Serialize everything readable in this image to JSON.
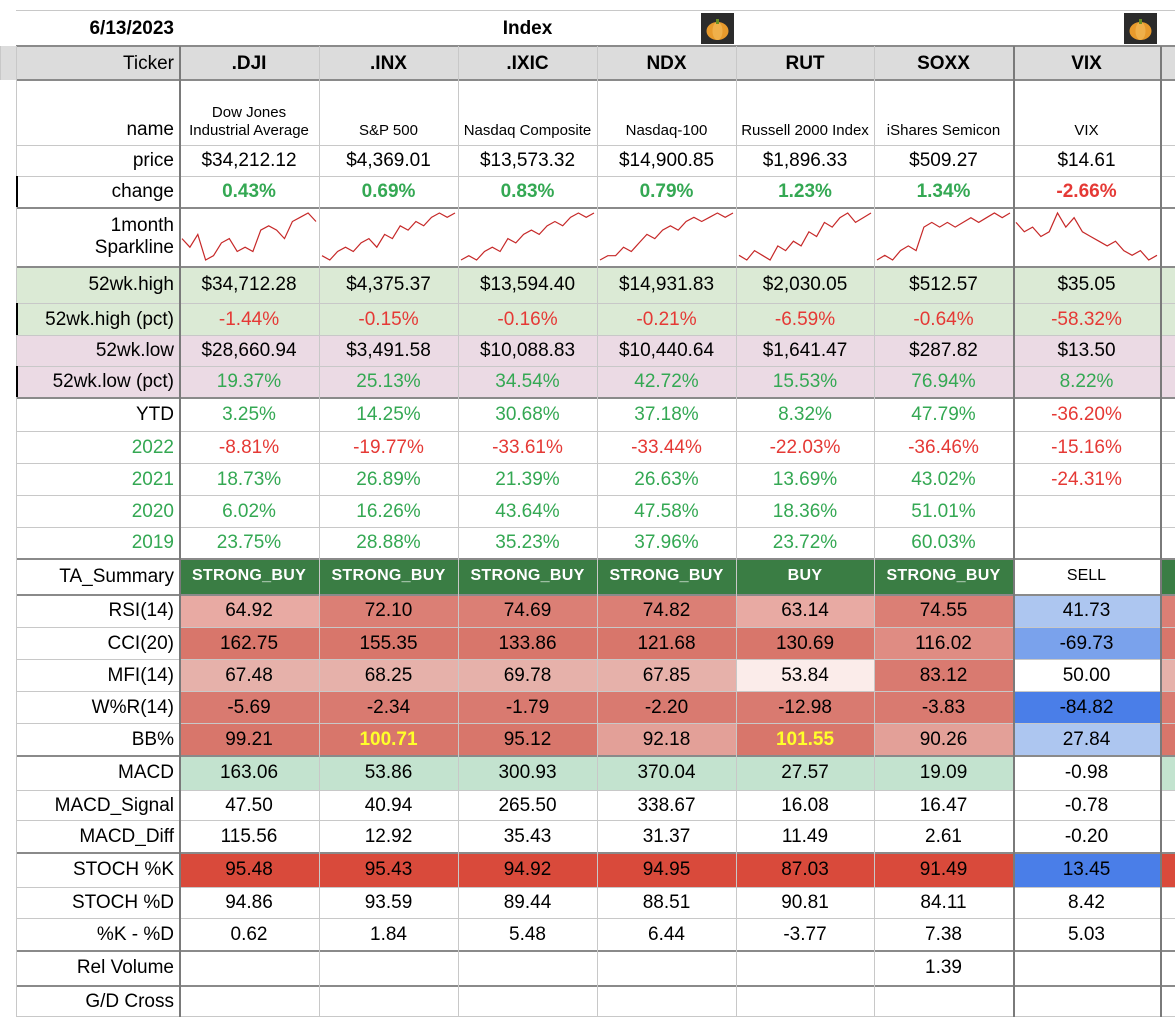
{
  "header": {
    "date": "6/13/2023",
    "section": "Index"
  },
  "row_labels": {
    "ticker": "Ticker",
    "name": "name",
    "price": "price",
    "change": "change",
    "sparkline": [
      "1month",
      "Sparkline"
    ],
    "high52": "52wk.high",
    "high52pct": "52wk.high (pct)",
    "low52": "52wk.low",
    "low52pct": "52wk.low (pct)",
    "ytd": "YTD",
    "y2022": "2022",
    "y2021": "2021",
    "y2020": "2020",
    "y2019": "2019",
    "ta": "TA_Summary",
    "rsi": "RSI(14)",
    "cci": "CCI(20)",
    "mfi": "MFI(14)",
    "wr": "W%R(14)",
    "bb": "BB%",
    "macd": "MACD",
    "macd_signal": "MACD_Signal",
    "macd_diff": "MACD_Diff",
    "stochk": "STOCH %K",
    "stochd": "STOCH %D",
    "kd": "%K - %D",
    "relvol": "Rel Volume",
    "gd": "G/D Cross"
  },
  "colors": {
    "gridline": "#c8c8c8",
    "header_bg": "#dcdcdc",
    "band_green": "#dbead5",
    "band_purple": "#ebdae4",
    "ta_green": "#3a7d44",
    "macd_green": "#c3e3cf",
    "text_green": "#34a853",
    "text_red": "#e53935",
    "spark": "#c62828"
  },
  "tickers": [
    {
      "ticker": ".DJI",
      "name": "Dow Jones Industrial Average",
      "price": "$34,212.12",
      "change": "0.43%",
      "high52": "$34,712.28",
      "high52pct": "-1.44%",
      "low52": "$28,660.94",
      "low52pct": "19.37%",
      "ytd": "3.25%",
      "y2022": "-8.81%",
      "y2021": "18.73%",
      "y2020": "6.02%",
      "y2019": "23.75%",
      "ta": "STRONG_BUY",
      "rsi": "64.92",
      "cci": "162.75",
      "mfi": "67.48",
      "wr": "-5.69",
      "bb": "99.21",
      "macd": "163.06",
      "macd_signal": "47.50",
      "macd_diff": "115.56",
      "stochk": "95.48",
      "stochd": "94.86",
      "kd": "0.62",
      "relvol": "",
      "gd": "",
      "spark": [
        6,
        4,
        7,
        1,
        2,
        5,
        6,
        3,
        4,
        3,
        8,
        9,
        8,
        6,
        10,
        11,
        12,
        10
      ]
    },
    {
      "ticker": ".INX",
      "name": "S&P 500",
      "price": "$4,369.01",
      "change": "0.69%",
      "high52": "$4,375.37",
      "high52pct": "-0.15%",
      "low52": "$3,491.58",
      "low52pct": "25.13%",
      "ytd": "14.25%",
      "y2022": "-19.77%",
      "y2021": "26.89%",
      "y2020": "16.26%",
      "y2019": "28.88%",
      "ta": "STRONG_BUY",
      "rsi": "72.10",
      "cci": "155.35",
      "mfi": "68.25",
      "wr": "-2.34",
      "bb": "100.71",
      "macd": "53.86",
      "macd_signal": "40.94",
      "macd_diff": "12.92",
      "stochk": "95.43",
      "stochd": "93.59",
      "kd": "1.84",
      "relvol": "",
      "gd": "",
      "spark": [
        2,
        1,
        3,
        4,
        3,
        5,
        6,
        4,
        7,
        6,
        9,
        8,
        10,
        9,
        11,
        12,
        11,
        12
      ]
    },
    {
      "ticker": ".IXIC",
      "name": "Nasdaq Composite",
      "price": "$13,573.32",
      "change": "0.83%",
      "high52": "$13,594.40",
      "high52pct": "-0.16%",
      "low52": "$10,088.83",
      "low52pct": "34.54%",
      "ytd": "30.68%",
      "y2022": "-33.61%",
      "y2021": "21.39%",
      "y2020": "43.64%",
      "y2019": "35.23%",
      "ta": "STRONG_BUY",
      "rsi": "74.69",
      "cci": "133.86",
      "mfi": "69.78",
      "wr": "-1.79",
      "bb": "95.12",
      "macd": "300.93",
      "macd_signal": "265.50",
      "macd_diff": "35.43",
      "stochk": "94.92",
      "stochd": "89.44",
      "kd": "5.48",
      "relvol": "",
      "gd": "",
      "spark": [
        1,
        2,
        1,
        3,
        4,
        3,
        6,
        5,
        7,
        8,
        7,
        9,
        10,
        9,
        11,
        12,
        11,
        12
      ]
    },
    {
      "ticker": "NDX",
      "name": "Nasdaq-100",
      "price": "$14,900.85",
      "change": "0.79%",
      "high52": "$14,931.83",
      "high52pct": "-0.21%",
      "low52": "$10,440.64",
      "low52pct": "42.72%",
      "ytd": "37.18%",
      "y2022": "-33.44%",
      "y2021": "26.63%",
      "y2020": "47.58%",
      "y2019": "37.96%",
      "ta": "STRONG_BUY",
      "rsi": "74.82",
      "cci": "121.68",
      "mfi": "67.85",
      "wr": "-2.20",
      "bb": "92.18",
      "macd": "370.04",
      "macd_signal": "338.67",
      "macd_diff": "31.37",
      "stochk": "94.95",
      "stochd": "88.51",
      "kd": "6.44",
      "relvol": "",
      "gd": "",
      "spark": [
        1,
        2,
        2,
        4,
        3,
        5,
        7,
        6,
        8,
        9,
        8,
        10,
        11,
        10,
        11,
        12,
        11,
        12
      ]
    },
    {
      "ticker": "RUT",
      "name": "Russell 2000 Index",
      "price": "$1,896.33",
      "change": "1.23%",
      "high52": "$2,030.05",
      "high52pct": "-6.59%",
      "low52": "$1,641.47",
      "low52pct": "15.53%",
      "ytd": "8.32%",
      "y2022": "-22.03%",
      "y2021": "13.69%",
      "y2020": "18.36%",
      "y2019": "23.72%",
      "ta": "BUY",
      "rsi": "63.14",
      "cci": "130.69",
      "mfi": "53.84",
      "wr": "-12.98",
      "bb": "101.55",
      "macd": "27.57",
      "macd_signal": "16.08",
      "macd_diff": "11.49",
      "stochk": "87.03",
      "stochd": "90.81",
      "kd": "-3.77",
      "relvol": "",
      "gd": "",
      "spark": [
        3,
        2,
        4,
        3,
        2,
        5,
        4,
        6,
        5,
        8,
        7,
        10,
        9,
        11,
        12,
        10,
        11,
        12
      ]
    },
    {
      "ticker": "SOXX",
      "name": "iShares Semicon",
      "price": "$509.27",
      "change": "1.34%",
      "high52": "$512.57",
      "high52pct": "-0.64%",
      "low52": "$287.82",
      "low52pct": "76.94%",
      "ytd": "47.79%",
      "y2022": "-36.46%",
      "y2021": "43.02%",
      "y2020": "51.01%",
      "y2019": "60.03%",
      "ta": "STRONG_BUY",
      "rsi": "74.55",
      "cci": "116.02",
      "mfi": "83.12",
      "wr": "-3.83",
      "bb": "90.26",
      "macd": "19.09",
      "macd_signal": "16.47",
      "macd_diff": "2.61",
      "stochk": "91.49",
      "stochd": "84.11",
      "kd": "7.38",
      "relvol": "1.39",
      "gd": "",
      "spark": [
        2,
        3,
        2,
        4,
        5,
        4,
        9,
        10,
        9,
        10,
        9,
        10,
        11,
        10,
        11,
        12,
        11,
        12
      ]
    },
    {
      "ticker": "VIX",
      "name": "VIX",
      "price": "$14.61",
      "change": "-2.66%",
      "high52": "$35.05",
      "high52pct": "-58.32%",
      "low52": "$13.50",
      "low52pct": "8.22%",
      "ytd": "-36.20%",
      "y2022": "-15.16%",
      "y2021": "-24.31%",
      "y2020": "",
      "y2019": "",
      "ta": "SELL",
      "rsi": "41.73",
      "cci": "-69.73",
      "mfi": "50.00",
      "wr": "-84.82",
      "bb": "27.84",
      "macd": "-0.98",
      "macd_signal": "-0.78",
      "macd_diff": "-0.20",
      "stochk": "13.45",
      "stochd": "8.42",
      "kd": "5.03",
      "relvol": "",
      "gd": "",
      "spark": [
        10,
        8,
        9,
        7,
        8,
        12,
        9,
        11,
        8,
        7,
        6,
        5,
        6,
        4,
        3,
        4,
        2,
        3
      ]
    }
  ]
}
